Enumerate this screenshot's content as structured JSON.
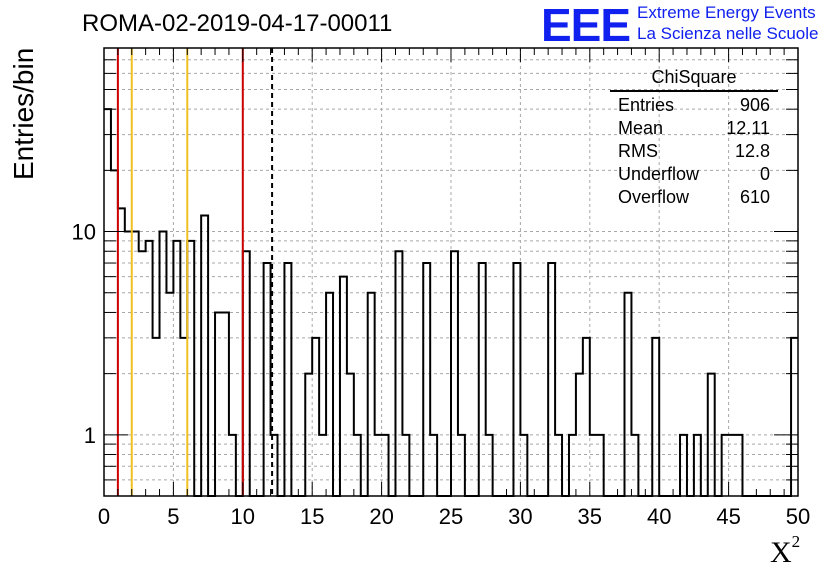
{
  "chart_data": {
    "type": "histogram",
    "title": "ROMA-02-2019-04-17-00011",
    "xlabel": "X",
    "xlabel_superscript": "2",
    "ylabel": "Entries/bin",
    "xlim": [
      0,
      50
    ],
    "ylim": [
      0.5,
      80
    ],
    "y_scale": "log",
    "grid": true,
    "bin_width": 0.5,
    "bins": [
      {
        "x0": 0.0,
        "y": 40
      },
      {
        "x0": 0.5,
        "y": 20
      },
      {
        "x0": 1.0,
        "y": 13
      },
      {
        "x0": 1.5,
        "y": 10
      },
      {
        "x0": 2.0,
        "y": 10
      },
      {
        "x0": 2.5,
        "y": 8
      },
      {
        "x0": 3.0,
        "y": 9
      },
      {
        "x0": 3.5,
        "y": 3
      },
      {
        "x0": 4.0,
        "y": 10
      },
      {
        "x0": 4.5,
        "y": 5
      },
      {
        "x0": 5.0,
        "y": 9
      },
      {
        "x0": 5.5,
        "y": 3
      },
      {
        "x0": 6.0,
        "y": 9
      },
      {
        "x0": 6.5,
        "y": 0
      },
      {
        "x0": 7.0,
        "y": 12
      },
      {
        "x0": 7.5,
        "y": 0
      },
      {
        "x0": 8.0,
        "y": 4
      },
      {
        "x0": 8.5,
        "y": 4
      },
      {
        "x0": 9.0,
        "y": 1
      },
      {
        "x0": 9.5,
        "y": 0
      },
      {
        "x0": 10.0,
        "y": 8
      },
      {
        "x0": 10.5,
        "y": 0
      },
      {
        "x0": 11.0,
        "y": 0
      },
      {
        "x0": 11.5,
        "y": 7
      },
      {
        "x0": 12.0,
        "y": 1
      },
      {
        "x0": 12.5,
        "y": 0
      },
      {
        "x0": 13.0,
        "y": 7
      },
      {
        "x0": 13.5,
        "y": 0
      },
      {
        "x0": 14.0,
        "y": 0
      },
      {
        "x0": 14.5,
        "y": 2
      },
      {
        "x0": 15.0,
        "y": 3
      },
      {
        "x0": 15.5,
        "y": 1
      },
      {
        "x0": 16.0,
        "y": 5
      },
      {
        "x0": 16.5,
        "y": 0
      },
      {
        "x0": 17.0,
        "y": 6
      },
      {
        "x0": 17.5,
        "y": 2
      },
      {
        "x0": 18.0,
        "y": 1
      },
      {
        "x0": 18.5,
        "y": 0
      },
      {
        "x0": 19.0,
        "y": 5
      },
      {
        "x0": 19.5,
        "y": 1
      },
      {
        "x0": 20.0,
        "y": 1
      },
      {
        "x0": 20.5,
        "y": 0
      },
      {
        "x0": 21.0,
        "y": 8
      },
      {
        "x0": 21.5,
        "y": 1
      },
      {
        "x0": 22.0,
        "y": 0
      },
      {
        "x0": 22.5,
        "y": 0
      },
      {
        "x0": 23.0,
        "y": 7
      },
      {
        "x0": 23.5,
        "y": 1
      },
      {
        "x0": 24.0,
        "y": 0
      },
      {
        "x0": 24.5,
        "y": 0
      },
      {
        "x0": 25.0,
        "y": 8
      },
      {
        "x0": 25.5,
        "y": 1
      },
      {
        "x0": 26.0,
        "y": 0
      },
      {
        "x0": 26.5,
        "y": 0
      },
      {
        "x0": 27.0,
        "y": 7
      },
      {
        "x0": 27.5,
        "y": 1
      },
      {
        "x0": 28.0,
        "y": 0
      },
      {
        "x0": 28.5,
        "y": 0
      },
      {
        "x0": 29.0,
        "y": 0
      },
      {
        "x0": 29.5,
        "y": 7
      },
      {
        "x0": 30.0,
        "y": 1
      },
      {
        "x0": 30.5,
        "y": 0
      },
      {
        "x0": 31.0,
        "y": 0
      },
      {
        "x0": 31.5,
        "y": 0
      },
      {
        "x0": 32.0,
        "y": 7
      },
      {
        "x0": 32.5,
        "y": 1
      },
      {
        "x0": 33.0,
        "y": 0
      },
      {
        "x0": 33.5,
        "y": 1
      },
      {
        "x0": 34.0,
        "y": 2
      },
      {
        "x0": 34.5,
        "y": 3
      },
      {
        "x0": 35.0,
        "y": 1
      },
      {
        "x0": 35.5,
        "y": 1
      },
      {
        "x0": 36.0,
        "y": 0
      },
      {
        "x0": 36.5,
        "y": 0
      },
      {
        "x0": 37.0,
        "y": 0
      },
      {
        "x0": 37.5,
        "y": 5
      },
      {
        "x0": 38.0,
        "y": 1
      },
      {
        "x0": 38.5,
        "y": 0
      },
      {
        "x0": 39.0,
        "y": 0
      },
      {
        "x0": 39.5,
        "y": 3
      },
      {
        "x0": 40.0,
        "y": 0
      },
      {
        "x0": 40.5,
        "y": 0
      },
      {
        "x0": 41.0,
        "y": 0
      },
      {
        "x0": 41.5,
        "y": 1
      },
      {
        "x0": 42.0,
        "y": 0
      },
      {
        "x0": 42.5,
        "y": 1
      },
      {
        "x0": 43.0,
        "y": 0
      },
      {
        "x0": 43.5,
        "y": 2
      },
      {
        "x0": 44.0,
        "y": 0
      },
      {
        "x0": 44.5,
        "y": 1
      },
      {
        "x0": 45.0,
        "y": 1
      },
      {
        "x0": 45.5,
        "y": 1
      },
      {
        "x0": 46.0,
        "y": 0
      },
      {
        "x0": 46.5,
        "y": 0
      },
      {
        "x0": 47.0,
        "y": 0
      },
      {
        "x0": 47.5,
        "y": 0
      },
      {
        "x0": 48.0,
        "y": 0
      },
      {
        "x0": 48.5,
        "y": 0
      },
      {
        "x0": 49.0,
        "y": 0
      },
      {
        "x0": 49.5,
        "y": 3
      }
    ],
    "x_ticks": [
      "0",
      "5",
      "10",
      "15",
      "20",
      "25",
      "30",
      "35",
      "40",
      "45",
      "50"
    ],
    "y_ticks": [
      "1",
      "10"
    ],
    "reference_lines": [
      {
        "x": 1,
        "color": "#cc0000",
        "style": "solid"
      },
      {
        "x": 2,
        "color": "#f0c020",
        "style": "solid"
      },
      {
        "x": 6,
        "color": "#f0c020",
        "style": "solid"
      },
      {
        "x": 10,
        "color": "#cc0000",
        "style": "solid"
      },
      {
        "x": 12.11,
        "color": "#000000",
        "style": "dashed"
      }
    ],
    "stats_box": {
      "title": "ChiSquare",
      "rows": [
        {
          "label": "Entries",
          "value": "906"
        },
        {
          "label": "Mean",
          "value": "12.11"
        },
        {
          "label": "RMS",
          "value": "12.8"
        },
        {
          "label": "Underflow",
          "value": "0"
        },
        {
          "label": "Overflow",
          "value": "610"
        }
      ]
    }
  },
  "logo": {
    "mark": "EEE",
    "line1": "Extreme Energy Events",
    "line2": "La Scienza nelle Scuole",
    "color": "#1020ee"
  }
}
